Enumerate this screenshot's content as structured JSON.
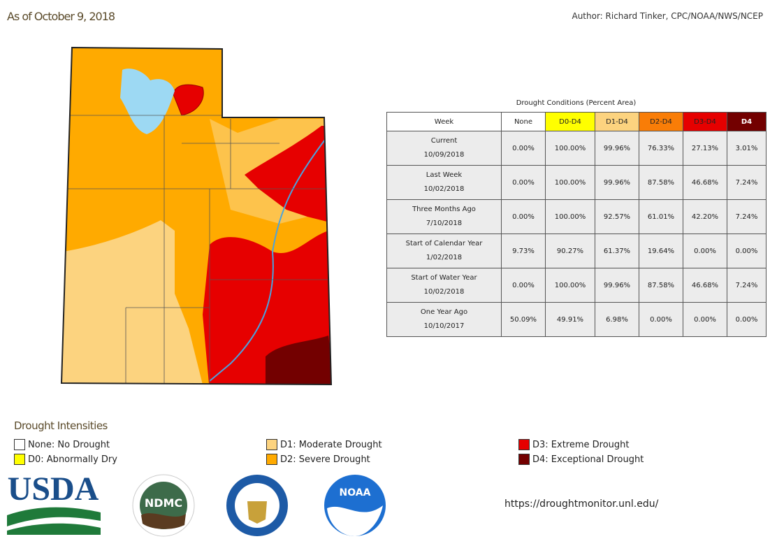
{
  "header": {
    "date": "As of October 9, 2018",
    "author": "Author: Richard Tinker, CPC/NOAA/NWS/NCEP"
  },
  "table": {
    "title": "Drought Conditions (Percent Area)",
    "columns": [
      "Week",
      "None",
      "D0-D4",
      "D1-D4",
      "D2-D4",
      "D3-D4",
      "D4"
    ],
    "rows": [
      [
        "Current",
        "10/09/2018",
        "0.00%",
        "100.00%",
        "99.96%",
        "76.33%",
        "27.13%",
        "3.01%"
      ],
      [
        "Last Week",
        "10/02/2018",
        "0.00%",
        "100.00%",
        "99.96%",
        "87.58%",
        "46.68%",
        "7.24%"
      ],
      [
        "Three Months Ago",
        "7/10/2018",
        "0.00%",
        "100.00%",
        "92.57%",
        "61.01%",
        "42.20%",
        "7.24%"
      ],
      [
        "Start of Calendar Year",
        "1/02/2018",
        "9.73%",
        "90.27%",
        "61.37%",
        "19.64%",
        "0.00%",
        "0.00%"
      ],
      [
        "Start of Water Year",
        "10/02/2018",
        "0.00%",
        "100.00%",
        "99.96%",
        "87.58%",
        "46.68%",
        "7.24%"
      ],
      [
        "One Year Ago",
        "10/10/2017",
        "50.09%",
        "49.91%",
        "6.98%",
        "0.00%",
        "0.00%",
        "0.00%"
      ]
    ]
  },
  "legend": {
    "title": "Drought Intensities",
    "items": [
      {
        "code": "None",
        "label": ": No Drought",
        "color": "#ffffff"
      },
      {
        "code": "D0",
        "label": ": Abnormally Dry",
        "color": "#ffff00"
      },
      {
        "code": "D1",
        "label": ": Moderate Drought",
        "color": "#fcd37f"
      },
      {
        "code": "D2",
        "label": ": Severe Drought",
        "color": "#ffaa00"
      },
      {
        "code": "D3",
        "label": ": Extreme Drought",
        "color": "#e60000"
      },
      {
        "code": "D4",
        "label": ": Exceptional Drought",
        "color": "#730000"
      }
    ]
  },
  "header_colors": [
    "#ffffff",
    "#ffffff",
    "#ffff00",
    "#fcd37f",
    "#f97d07",
    "#e60000",
    "#730000"
  ],
  "logos": {
    "usda": "USDA",
    "ndmc": "NDMC",
    "noaa": "NOAA"
  },
  "url": "https://droughtmonitor.unl.edu/"
}
